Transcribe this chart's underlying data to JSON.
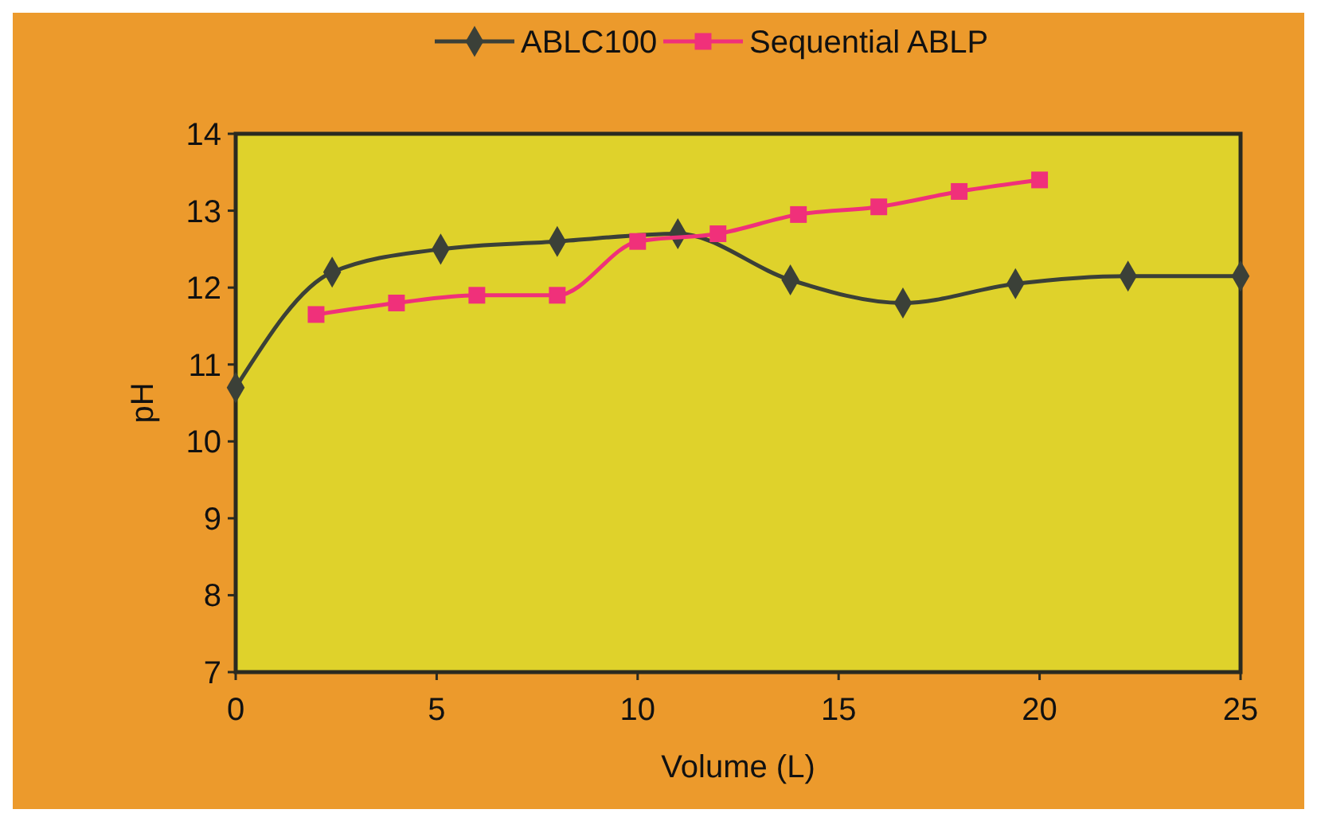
{
  "chart_data": {
    "type": "line",
    "xlabel": "Volume (L)",
    "ylabel": "pH",
    "xlim": [
      0,
      25
    ],
    "xticks": [
      0,
      5,
      10,
      15,
      20,
      25
    ],
    "ylim": [
      7,
      14
    ],
    "yticks": [
      7,
      8,
      9,
      10,
      11,
      12,
      13,
      14
    ],
    "grid": false,
    "legend": "top",
    "series": [
      {
        "name": "ABLC100",
        "color": "#3b4038",
        "marker": "diamond",
        "x": [
          0,
          2.4,
          5.1,
          8,
          11,
          13.8,
          16.6,
          19.4,
          22.2,
          25
        ],
        "values": [
          10.7,
          12.2,
          12.5,
          12.6,
          12.7,
          12.1,
          11.8,
          12.05,
          12.15,
          12.15
        ]
      },
      {
        "name": "Sequential ABLP",
        "color": "#f0307a",
        "marker": "square",
        "x": [
          2,
          4,
          6,
          8,
          10,
          12,
          14,
          16,
          18,
          20
        ],
        "values": [
          11.65,
          11.8,
          11.9,
          11.9,
          12.6,
          12.7,
          12.95,
          13.05,
          13.25,
          13.4
        ]
      }
    ]
  }
}
